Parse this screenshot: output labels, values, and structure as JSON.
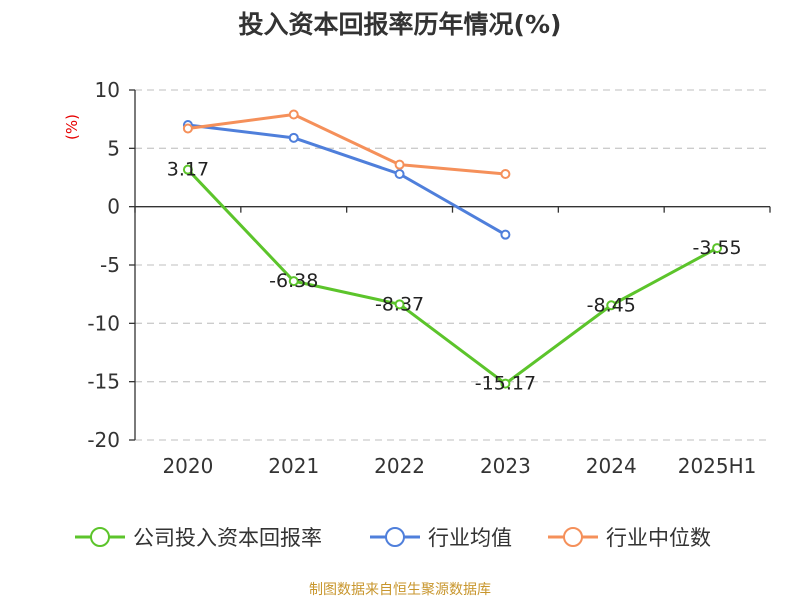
{
  "chart_data": {
    "type": "line",
    "title": "投入资本回报率历年情况(%)",
    "ylabel": "(%)",
    "categories": [
      "2020",
      "2021",
      "2022",
      "2023",
      "2024",
      "2025H1"
    ],
    "ylim": [
      -20,
      10
    ],
    "yticks": [
      10,
      5,
      0,
      -5,
      -10,
      -15,
      -20
    ],
    "grid": true,
    "legend_position": "bottom",
    "series": [
      {
        "name": "公司投入资本回报率",
        "color": "#5cc42b",
        "values": [
          3.17,
          -6.38,
          -8.37,
          -15.17,
          -8.45,
          -3.55
        ],
        "labels": [
          "3.17",
          "-6.38",
          "-8.37",
          "-15.17",
          "-8.45",
          "-3.55"
        ]
      },
      {
        "name": "行业均值",
        "color": "#4f7fdb",
        "values": [
          7.0,
          5.9,
          2.8,
          -2.4,
          null,
          null
        ]
      },
      {
        "name": "行业中位数",
        "color": "#f5905a",
        "values": [
          6.7,
          7.9,
          3.6,
          2.8,
          null,
          null
        ]
      }
    ]
  },
  "source": "制图数据来自恒生聚源数据库"
}
